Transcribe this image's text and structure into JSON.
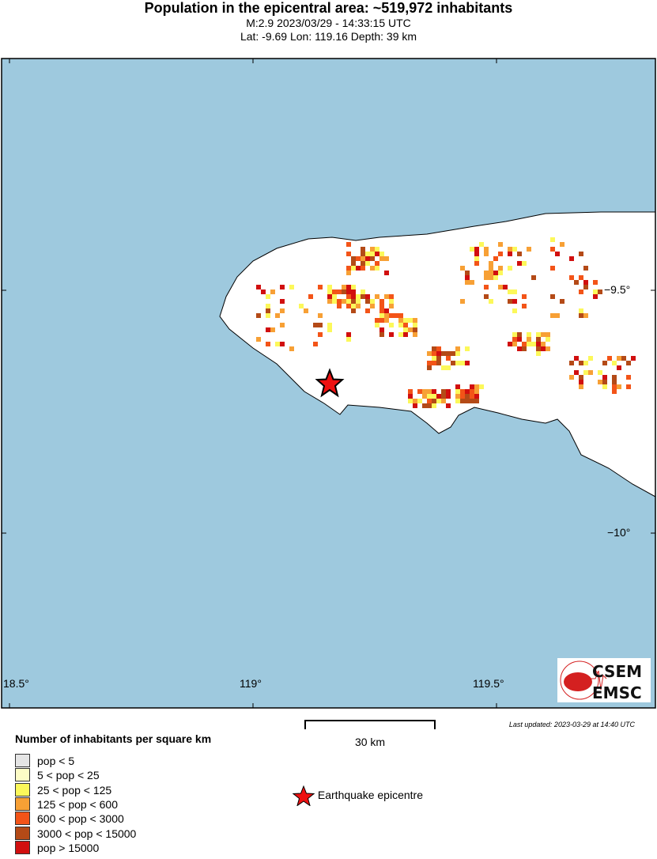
{
  "header": {
    "title": "Population in the epicentral area: ~519,972 inhabitants",
    "line1": "M:2.9 2023/03/29 - 14:33:15 UTC",
    "line2": "Lat: -9.69 Lon: 119.16 Depth: 39 km"
  },
  "map": {
    "sea_color": "#9ec9de",
    "land_color": "#ffffff",
    "lon_ticks": [
      "18.5°",
      "119°",
      "119.5°"
    ],
    "lat_ticks": [
      "−9.5°",
      "−10°"
    ],
    "epicenter": {
      "lat": -9.69,
      "lon": 119.16,
      "icon": "red-star-icon",
      "color": "#ee1111"
    }
  },
  "logo": {
    "top": "CSEM",
    "bottom": "EMSC"
  },
  "scale_bar": {
    "label": "30 km"
  },
  "last_updated": "Last updated: 2023-03-29 at 14:40 UTC",
  "legend": {
    "title": "Number of inhabitants per square km",
    "items": [
      {
        "label": "pop < 5",
        "color": "#e5e5e5"
      },
      {
        "label": "5 < pop < 25",
        "color": "#fdfcc6"
      },
      {
        "label": "25 < pop < 125",
        "color": "#fcf85a"
      },
      {
        "label": "125 < pop < 600",
        "color": "#f7a035"
      },
      {
        "label": "600 < pop < 3000",
        "color": "#f35418"
      },
      {
        "label": "3000 < pop < 15000",
        "color": "#b44a17"
      },
      {
        "label": "pop > 15000",
        "color": "#d10f0f"
      }
    ],
    "epicentre_label": "Earthquake epicentre"
  }
}
